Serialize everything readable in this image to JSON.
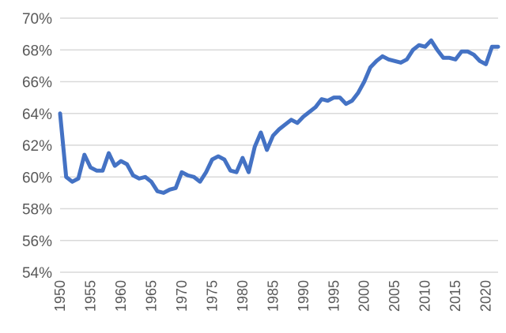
{
  "chart_data": {
    "type": "line",
    "title": "",
    "xlabel": "",
    "ylabel": "",
    "y_tick_labels": [
      "54%",
      "56%",
      "58%",
      "60%",
      "62%",
      "64%",
      "66%",
      "68%",
      "70%"
    ],
    "y_ticks": [
      54,
      56,
      58,
      60,
      62,
      64,
      66,
      68,
      70
    ],
    "x_tick_labels": [
      "1950",
      "1955",
      "1960",
      "1965",
      "1970",
      "1975",
      "1980",
      "1985",
      "1990",
      "1995",
      "2000",
      "2005",
      "2010",
      "2015",
      "2020"
    ],
    "x_ticks": [
      1950,
      1955,
      1960,
      1965,
      1970,
      1975,
      1980,
      1985,
      1990,
      1995,
      2000,
      2005,
      2010,
      2015,
      2020
    ],
    "xlim": [
      1950,
      2022
    ],
    "ylim": [
      54,
      70
    ],
    "grid": true,
    "legend": "none",
    "colors": {
      "series": "#4472c4",
      "grid": "#d9d9d9",
      "tick_text": "#595959"
    },
    "x": [
      1950,
      1951,
      1952,
      1953,
      1954,
      1955,
      1956,
      1957,
      1958,
      1959,
      1960,
      1961,
      1962,
      1963,
      1964,
      1965,
      1966,
      1967,
      1968,
      1969,
      1970,
      1971,
      1972,
      1973,
      1974,
      1975,
      1976,
      1977,
      1978,
      1979,
      1980,
      1981,
      1982,
      1983,
      1984,
      1985,
      1986,
      1987,
      1988,
      1989,
      1990,
      1991,
      1992,
      1993,
      1994,
      1995,
      1996,
      1997,
      1998,
      1999,
      2000,
      2001,
      2002,
      2003,
      2004,
      2005,
      2006,
      2007,
      2008,
      2009,
      2010,
      2011,
      2012,
      2013,
      2014,
      2015,
      2016,
      2017,
      2018,
      2019,
      2020,
      2021,
      2022
    ],
    "series": [
      {
        "values": [
          64.0,
          60.0,
          59.7,
          59.9,
          61.4,
          60.6,
          60.4,
          60.4,
          61.5,
          60.7,
          61.0,
          60.8,
          60.1,
          59.9,
          60.0,
          59.7,
          59.1,
          59.0,
          59.2,
          59.3,
          60.3,
          60.1,
          60.0,
          59.7,
          60.3,
          61.1,
          61.3,
          61.1,
          60.4,
          60.3,
          61.2,
          60.3,
          61.9,
          62.8,
          61.7,
          62.6,
          63.0,
          63.3,
          63.6,
          63.4,
          63.8,
          64.1,
          64.4,
          64.9,
          64.8,
          65.0,
          65.0,
          64.6,
          64.8,
          65.3,
          66.0,
          66.9,
          67.3,
          67.6,
          67.4,
          67.3,
          67.2,
          67.4,
          68.0,
          68.3,
          68.2,
          68.6,
          68.0,
          67.5,
          67.5,
          67.4,
          67.9,
          67.9,
          67.7,
          67.3,
          67.1,
          68.2,
          68.2
        ]
      }
    ]
  }
}
